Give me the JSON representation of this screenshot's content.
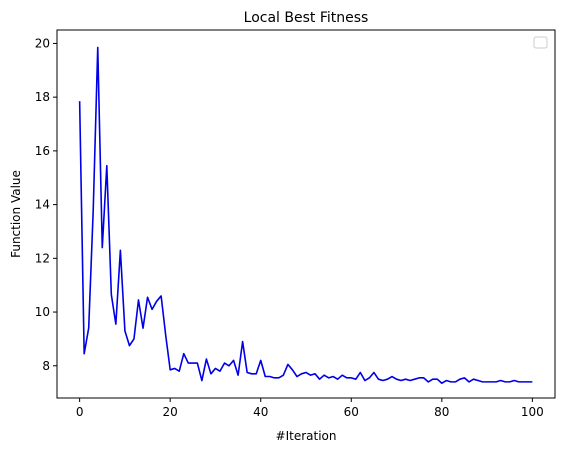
{
  "chart_data": {
    "type": "line",
    "title": "Local Best Fitness",
    "xlabel": "#Iteration",
    "ylabel": "Function Value",
    "xlim": [
      -5,
      105
    ],
    "ylim": [
      6.8,
      20.5
    ],
    "xticks": [
      0,
      20,
      40,
      60,
      80,
      100
    ],
    "yticks": [
      8,
      10,
      12,
      14,
      16,
      18,
      20
    ],
    "grid": false,
    "legend": "top-right (empty)",
    "series": [
      {
        "color": "#0000e6",
        "x": [
          0,
          1,
          2,
          3,
          4,
          5,
          6,
          7,
          8,
          9,
          10,
          11,
          12,
          13,
          14,
          15,
          16,
          17,
          18,
          19,
          20,
          21,
          22,
          23,
          24,
          25,
          26,
          27,
          28,
          29,
          30,
          31,
          32,
          33,
          34,
          35,
          36,
          37,
          38,
          39,
          40,
          41,
          42,
          43,
          44,
          45,
          46,
          47,
          48,
          49,
          50,
          51,
          52,
          53,
          54,
          55,
          56,
          57,
          58,
          59,
          60,
          61,
          62,
          63,
          64,
          65,
          66,
          67,
          68,
          69,
          70,
          71,
          72,
          73,
          74,
          75,
          76,
          77,
          78,
          79,
          80,
          81,
          82,
          83,
          84,
          85,
          86,
          87,
          88,
          89,
          90,
          91,
          92,
          93,
          94,
          95,
          96,
          97,
          98,
          99,
          100
        ],
        "values": [
          17.85,
          8.45,
          9.4,
          13.8,
          19.85,
          12.4,
          15.45,
          10.65,
          9.55,
          12.3,
          9.3,
          8.75,
          9.0,
          10.45,
          9.4,
          10.55,
          10.1,
          10.4,
          10.6,
          9.15,
          7.85,
          7.9,
          7.8,
          8.45,
          8.1,
          8.1,
          8.1,
          7.45,
          8.25,
          7.7,
          7.9,
          7.8,
          8.1,
          8.0,
          8.2,
          7.65,
          8.9,
          7.75,
          7.7,
          7.7,
          8.2,
          7.6,
          7.6,
          7.55,
          7.55,
          7.65,
          8.05,
          7.85,
          7.6,
          7.7,
          7.75,
          7.65,
          7.7,
          7.5,
          7.65,
          7.55,
          7.6,
          7.5,
          7.65,
          7.55,
          7.55,
          7.5,
          7.75,
          7.45,
          7.55,
          7.75,
          7.5,
          7.45,
          7.5,
          7.6,
          7.5,
          7.45,
          7.5,
          7.45,
          7.5,
          7.55,
          7.55,
          7.4,
          7.5,
          7.5,
          7.35,
          7.45,
          7.4,
          7.4,
          7.5,
          7.55,
          7.4,
          7.5,
          7.45,
          7.4,
          7.4,
          7.4,
          7.4,
          7.45,
          7.4,
          7.4,
          7.45,
          7.4,
          7.4,
          7.4,
          7.4
        ]
      }
    ]
  }
}
